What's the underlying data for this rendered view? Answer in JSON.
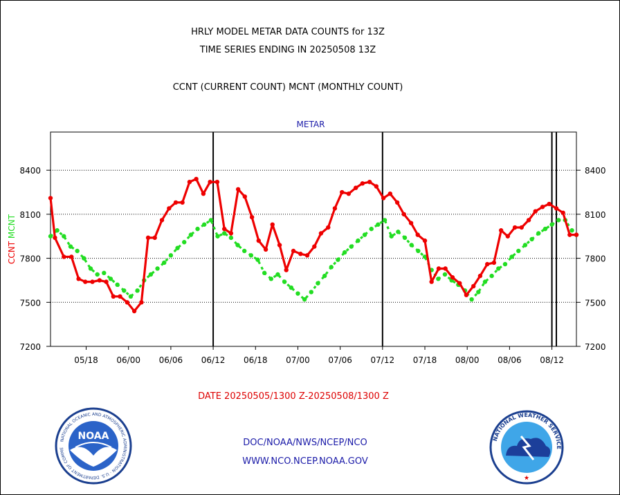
{
  "title_line1": "HRLY MODEL METAR DATA COUNTS for 13Z",
  "title_line2": "TIME SERIES ENDING IN 20250508 13Z",
  "subtitle": "CCNT (CURRENT COUNT) MCNT (MONTHLY COUNT)",
  "panel_label": "METAR",
  "date_range": "DATE 20250505/1300 Z-20250508/1300 Z",
  "link_line1": "DOC/NOAA/NWS/NCEP/NCO",
  "link_line2": "WWW.NCO.NCEP.NOAA.GOV",
  "logos": {
    "noaa": {
      "text": "NOAA",
      "ring_text": "NATIONAL OCEANIC AND ATMOSPHERIC ADMINISTRATION · U.S. DEPARTMENT OF COMMERCE"
    },
    "nws": {
      "ring_text": "NATIONAL WEATHER SERVICE"
    }
  },
  "colors": {
    "ccnt": "#ee0000",
    "mcnt": "#22dd22",
    "link": "#1a1aa8",
    "date": "#dd0000"
  },
  "chart_data": {
    "type": "line",
    "title": "HRLY MODEL METAR DATA COUNTS for 13Z",
    "ylabel": {
      "ccnt": "CCNT",
      "mcnt": "MCNT"
    },
    "ylim": [
      7200,
      8660
    ],
    "xlim": [
      0,
      118
    ],
    "yticks": [
      7200,
      7500,
      7800,
      8100,
      8400
    ],
    "gridlines_y": [
      7500,
      7800,
      8100,
      8400
    ],
    "xticks": [
      {
        "x": 8,
        "label": "05/18"
      },
      {
        "x": 17.5,
        "label": "06/00"
      },
      {
        "x": 27,
        "label": "06/06"
      },
      {
        "x": 36.5,
        "label": "06/12"
      },
      {
        "x": 46,
        "label": "06/18"
      },
      {
        "x": 55.5,
        "label": "07/00"
      },
      {
        "x": 65,
        "label": "07/06"
      },
      {
        "x": 74.5,
        "label": "07/12"
      },
      {
        "x": 84,
        "label": "07/18"
      },
      {
        "x": 93.5,
        "label": "08/00"
      },
      {
        "x": 103,
        "label": "08/06"
      },
      {
        "x": 112.5,
        "label": "08/12"
      }
    ],
    "vlines_x": [
      36.5,
      74.5,
      112.5,
      113.5
    ],
    "series": [
      {
        "name": "CCNT",
        "x": [
          0,
          1,
          3,
          4.7,
          6.3,
          7.8,
          9.4,
          11,
          12.5,
          14.1,
          15.6,
          17.2,
          18.8,
          20.4,
          21.9,
          23.4,
          25,
          26.6,
          28.1,
          29.6,
          31.2,
          32.7,
          34.3,
          35.8,
          37.4,
          39,
          40.5,
          42.1,
          43.6,
          45.2,
          46.7,
          48.3,
          49.8,
          51.4,
          52.9,
          54.5,
          56.1,
          57.6,
          59.2,
          60.7,
          62.3,
          63.8,
          65.4,
          66.9,
          68.5,
          70,
          71.6,
          73.1,
          74.7,
          76.2,
          77.8,
          79.3,
          80.9,
          82.4,
          84,
          85.5,
          87.1,
          88.6,
          90.2,
          91.8,
          93.3,
          94.9,
          96.4,
          98,
          99.5,
          101.1,
          102.6,
          104.2,
          105.7,
          107.3,
          108.8,
          110.4,
          111.9,
          113.5,
          115,
          116.5,
          118
        ],
        "values": [
          8210,
          7940,
          7810,
          7810,
          7660,
          7640,
          7640,
          7650,
          7640,
          7540,
          7540,
          7500,
          7440,
          7500,
          7940,
          7940,
          8060,
          8140,
          8180,
          8180,
          8320,
          8340,
          8240,
          8320,
          8320,
          8000,
          7970,
          8270,
          8220,
          8080,
          7920,
          7860,
          8030,
          7890,
          7720,
          7850,
          7830,
          7820,
          7880,
          7970,
          8010,
          8140,
          8250,
          8240,
          8280,
          8310,
          8320,
          8290,
          8210,
          8240,
          8180,
          8100,
          8040,
          7960,
          7920,
          7640,
          7730,
          7730,
          7670,
          7630,
          7550,
          7610,
          7680,
          7760,
          7770,
          7990,
          7950,
          8010,
          8010,
          8060,
          8120,
          8150,
          8170,
          8140,
          8110,
          7960,
          7960
        ]
      },
      {
        "name": "MCNT",
        "x": [
          0,
          1.5,
          3,
          4.5,
          6,
          7.5,
          9,
          10.5,
          12,
          13.5,
          15,
          16.5,
          18,
          19.5,
          21,
          22.5,
          24,
          25.5,
          27,
          28.5,
          30,
          31.5,
          33,
          34.5,
          36,
          37.5,
          39,
          40.5,
          42,
          43.5,
          45,
          46.5,
          48,
          49.5,
          51,
          52.5,
          54,
          55.5,
          57,
          58.5,
          60,
          61.5,
          63,
          64.5,
          66,
          67.5,
          69,
          70.5,
          72,
          73.5,
          75,
          76.5,
          78,
          79.5,
          81,
          82.5,
          84,
          85.5,
          87,
          88.5,
          90,
          91.5,
          93,
          94.5,
          96,
          97.5,
          99,
          100.5,
          102,
          103.5,
          105,
          106.5,
          108,
          109.5,
          111,
          112.5,
          114,
          115.5,
          117,
          118
        ],
        "values": [
          7950,
          7990,
          7950,
          7880,
          7850,
          7800,
          7730,
          7690,
          7700,
          7660,
          7620,
          7580,
          7540,
          7580,
          7650,
          7690,
          7730,
          7770,
          7820,
          7870,
          7910,
          7960,
          8000,
          8030,
          8060,
          7950,
          7970,
          7940,
          7890,
          7850,
          7820,
          7790,
          7700,
          7660,
          7690,
          7640,
          7600,
          7560,
          7520,
          7570,
          7630,
          7680,
          7740,
          7790,
          7840,
          7880,
          7920,
          7960,
          8000,
          8030,
          8060,
          7950,
          7980,
          7940,
          7890,
          7850,
          7810,
          7720,
          7660,
          7690,
          7650,
          7620,
          7580,
          7520,
          7570,
          7640,
          7680,
          7730,
          7760,
          7810,
          7850,
          7890,
          7930,
          7970,
          8000,
          8030,
          8060,
          8060,
          7990,
          7960
        ]
      }
    ]
  }
}
